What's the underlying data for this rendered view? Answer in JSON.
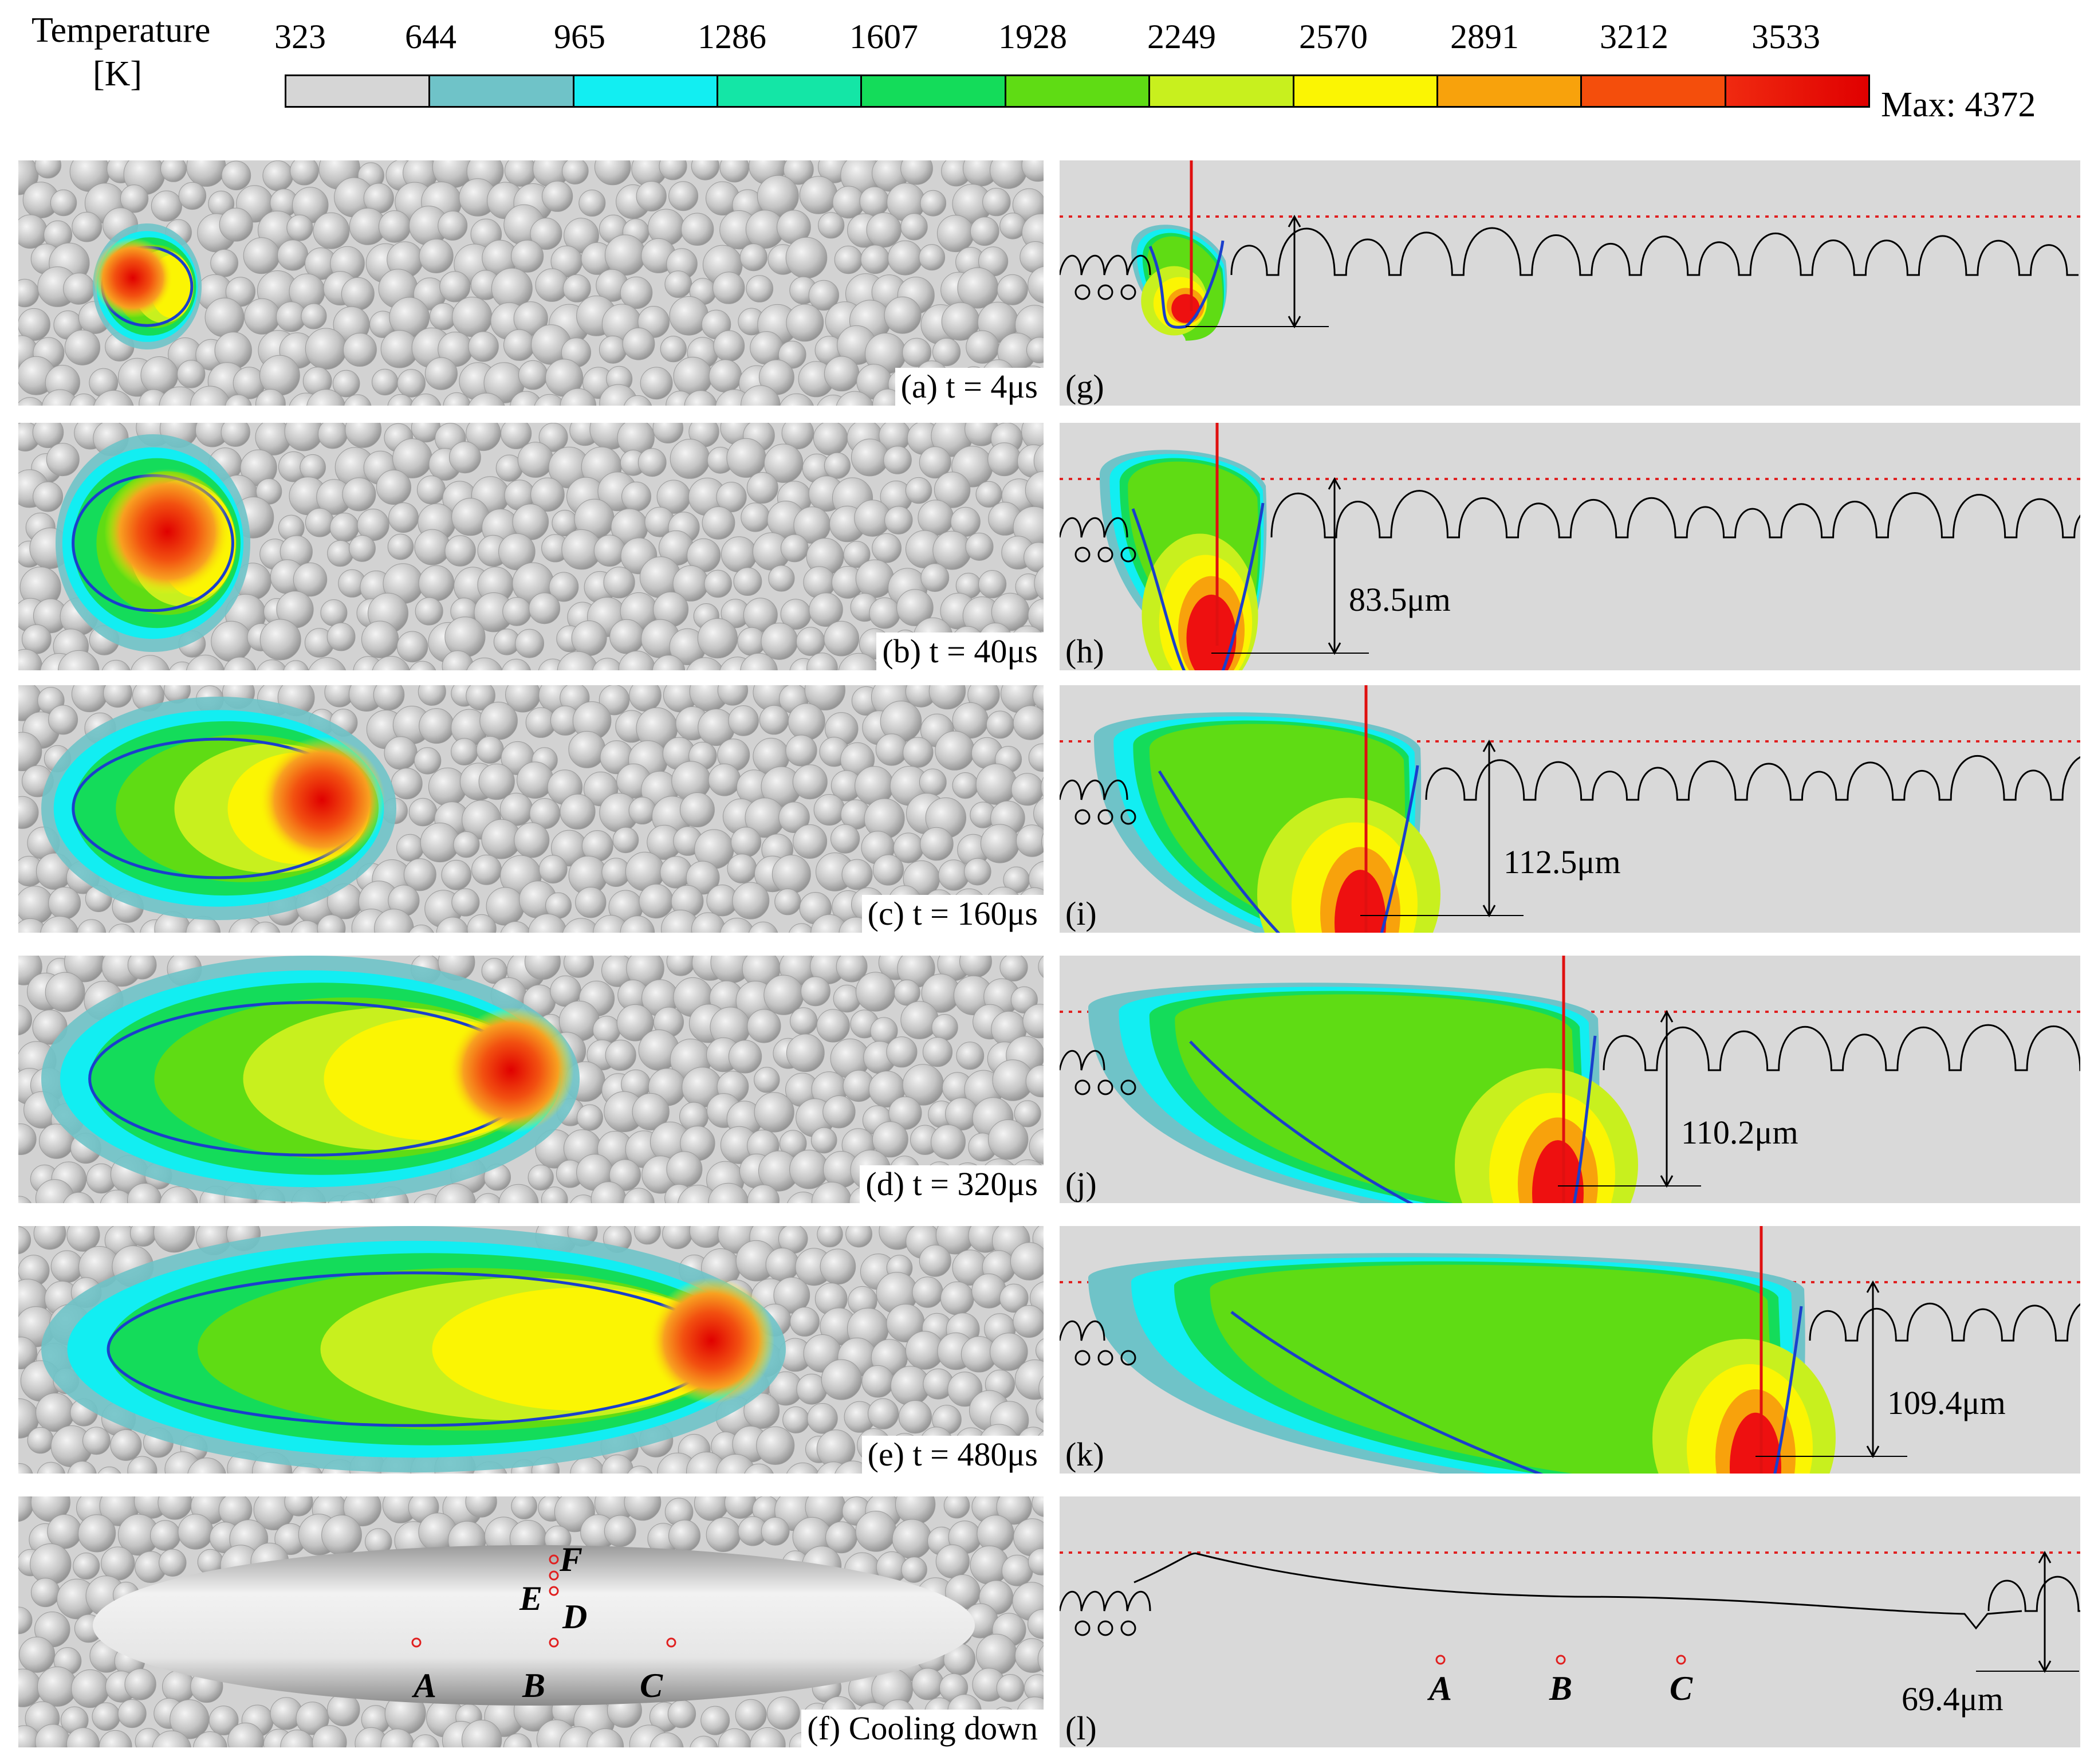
{
  "legend": {
    "title_line1": "Temperature",
    "title_line2": "[K]",
    "ticks": [
      "323",
      "644",
      "965",
      "1286",
      "1607",
      "1928",
      "2249",
      "2570",
      "2891",
      "3212",
      "3533"
    ],
    "max_label": "Max: 4372",
    "colors": [
      "#d6d6d6",
      "#6fc3c8",
      "#12eef2",
      "#14e6a6",
      "#14dc5a",
      "#5fdc14",
      "#c8f01e",
      "#fbf503",
      "#f8a20c",
      "#f44e0c",
      "#ee1010"
    ]
  },
  "left_panels": [
    {
      "caption": "(a) t = 4μs"
    },
    {
      "caption": "(b) t = 40μs"
    },
    {
      "caption": "(c) t = 160μs"
    },
    {
      "caption": "(d) t = 320μs"
    },
    {
      "caption": "(e) t = 480μs"
    },
    {
      "caption": "(f) Cooling down"
    }
  ],
  "right_panels": [
    {
      "caption": "(g)",
      "depth": ""
    },
    {
      "caption": "(h)",
      "depth": "83.5μm"
    },
    {
      "caption": "(i)",
      "depth": "112.5μm"
    },
    {
      "caption": "(j)",
      "depth": "110.2μm"
    },
    {
      "caption": "(k)",
      "depth": "109.4μm"
    },
    {
      "caption": "(l)",
      "depth": "69.4μm"
    }
  ],
  "sample_points_top": [
    "A",
    "B",
    "C",
    "D",
    "E",
    "F"
  ],
  "sample_points_cross": [
    "A",
    "B",
    "C"
  ],
  "colors": {
    "laser": "#e01010",
    "powder_line": "#e02020",
    "melt_boundary": "#1a3fcc",
    "particle": "#c8c8c8",
    "background_left": "#d2d2d2",
    "background_right": "#d9d9d9"
  }
}
